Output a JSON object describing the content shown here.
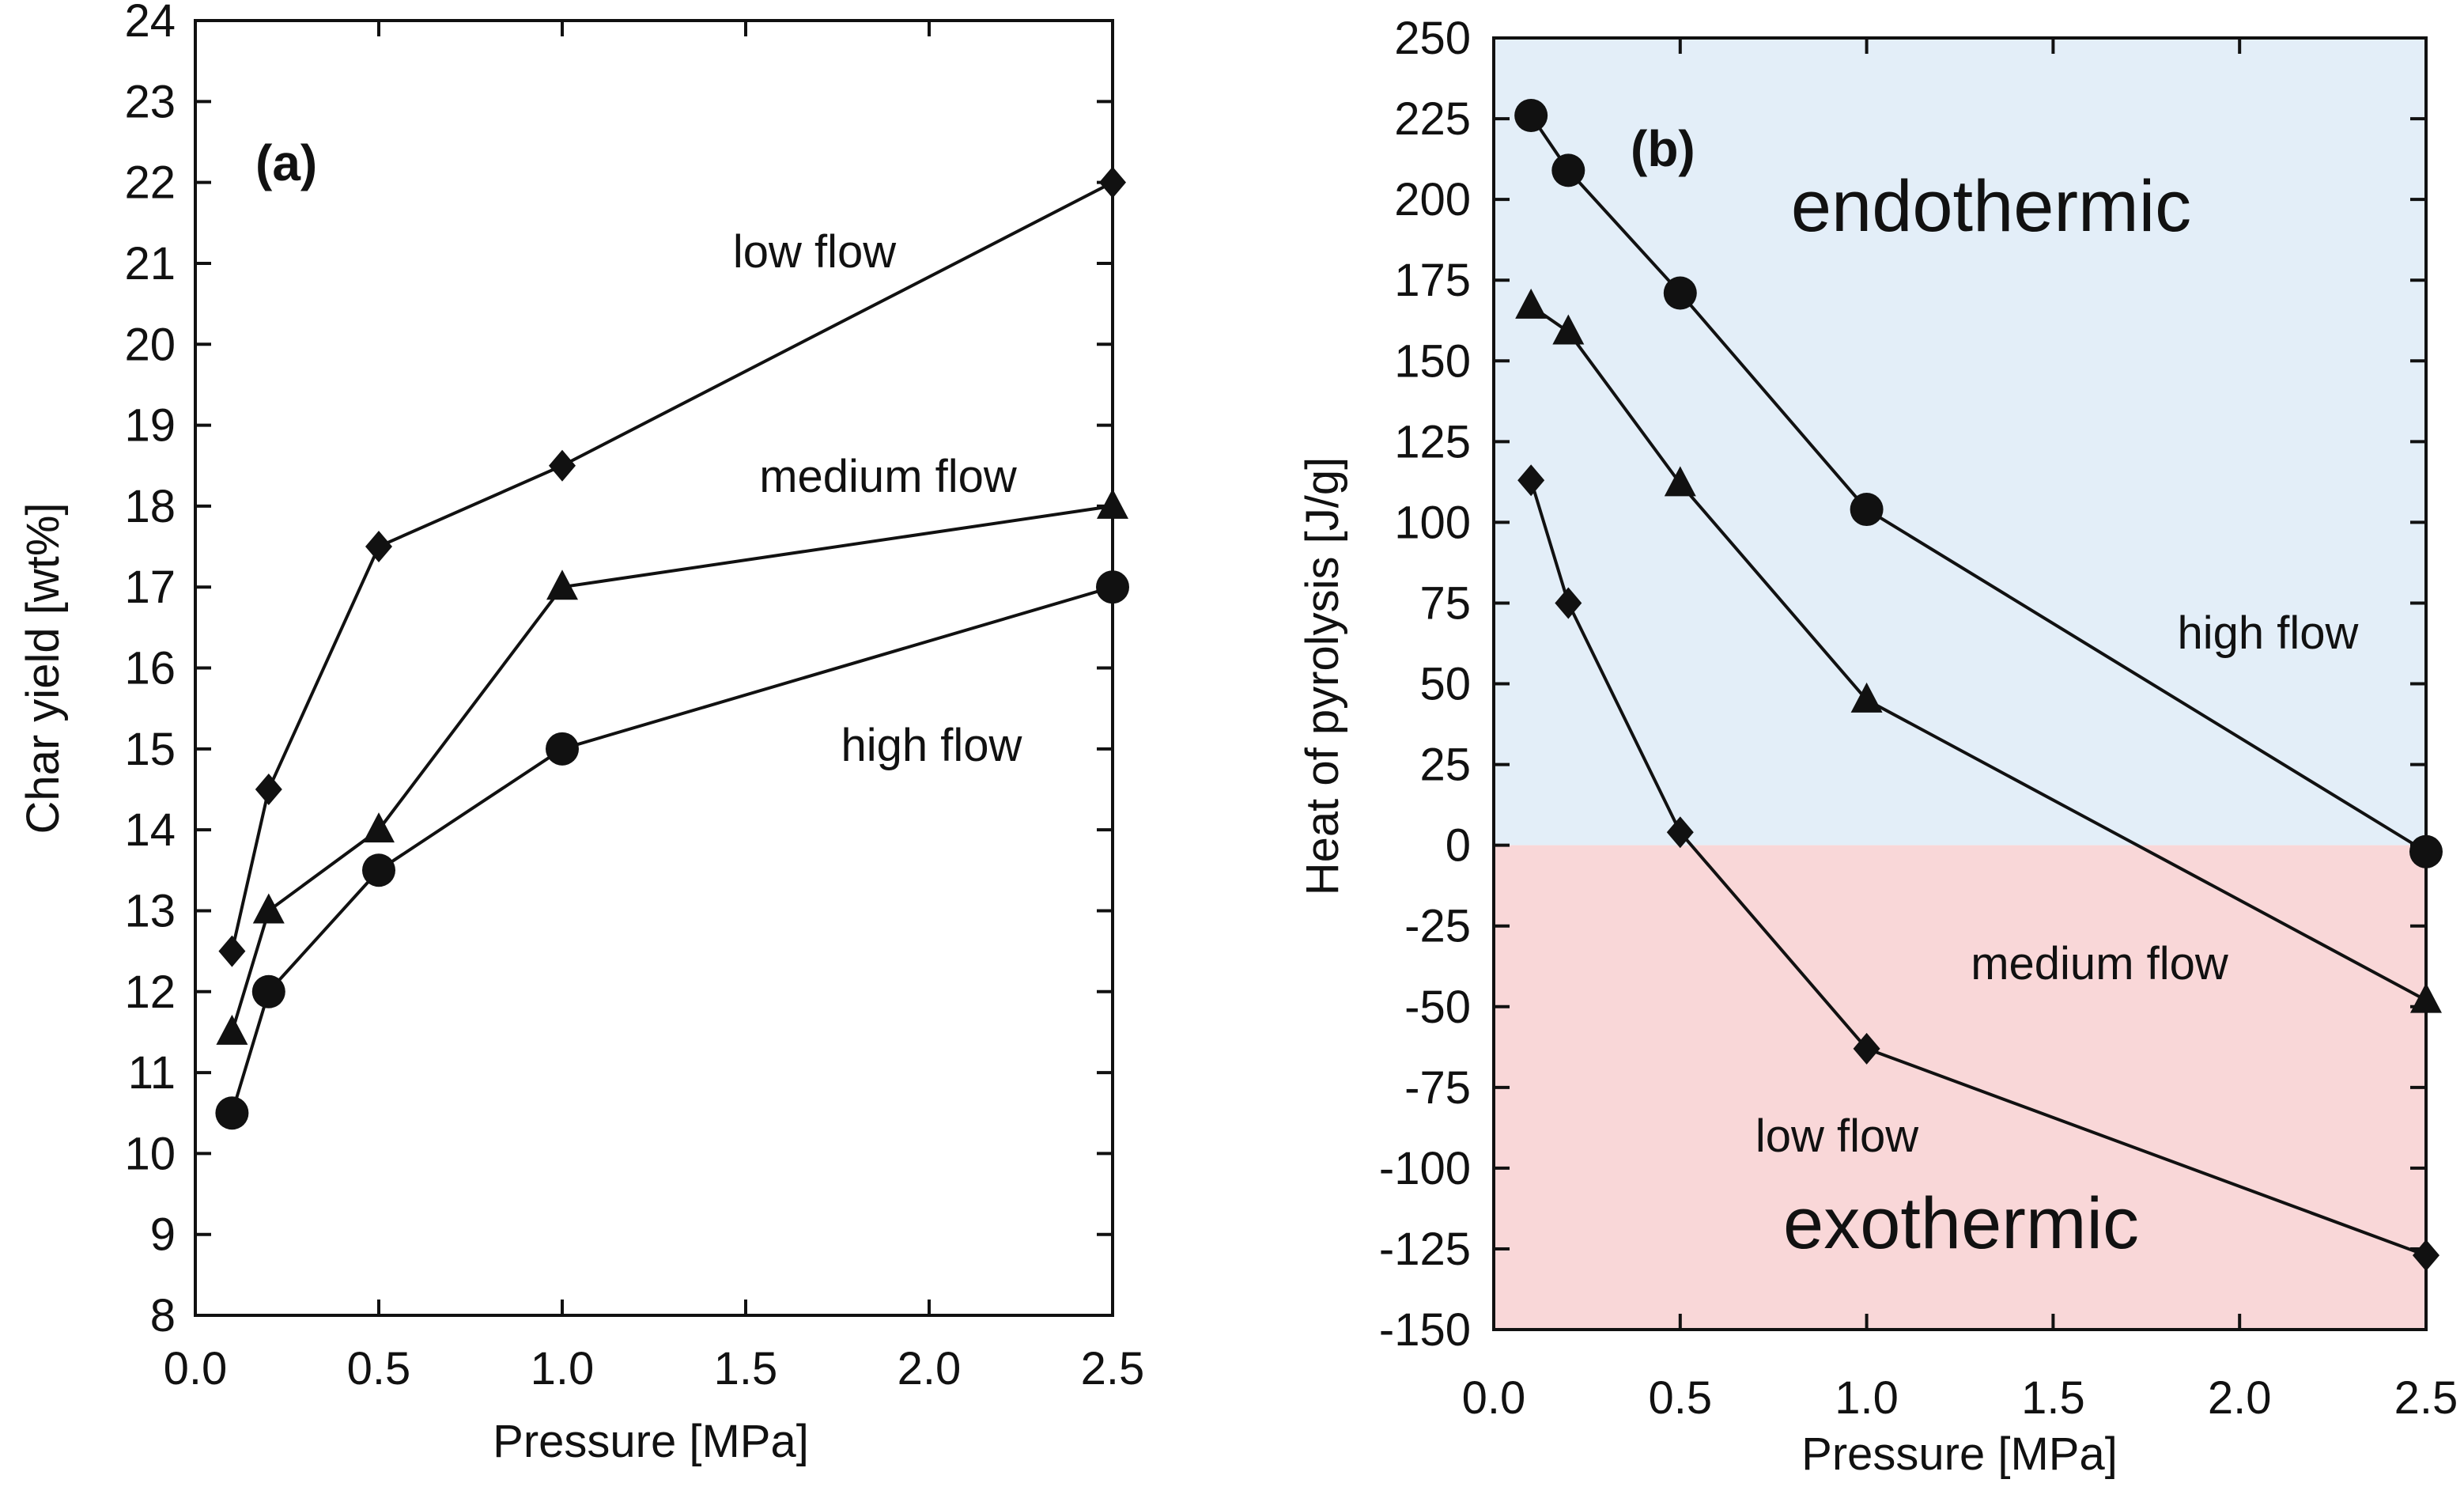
{
  "chart_data": [
    {
      "type": "line",
      "panel_label": "(a)",
      "xlabel": "Pressure [MPa]",
      "ylabel": "Char yield [wt%]",
      "x_ticks": [
        "0.0",
        "0.5",
        "1.0",
        "1.5",
        "2.0",
        "2.5"
      ],
      "y_ticks": [
        "8",
        "9",
        "10",
        "11",
        "12",
        "13",
        "14",
        "15",
        "16",
        "17",
        "18",
        "19",
        "20",
        "21",
        "22",
        "23",
        "24"
      ],
      "xlim": [
        0,
        2.5
      ],
      "ylim": [
        8,
        24
      ],
      "series": [
        {
          "name": "low flow",
          "marker": "diamond",
          "x": [
            0.1,
            0.2,
            0.5,
            1.0,
            2.5
          ],
          "y": [
            12.5,
            14.5,
            17.5,
            18.5,
            22.0
          ]
        },
        {
          "name": "medium flow",
          "marker": "triangle",
          "x": [
            0.1,
            0.2,
            0.5,
            1.0,
            2.5
          ],
          "y": [
            11.5,
            13.0,
            14.0,
            17.0,
            18.0
          ]
        },
        {
          "name": "high flow",
          "marker": "circle",
          "x": [
            0.1,
            0.2,
            0.5,
            1.0,
            2.5
          ],
          "y": [
            10.5,
            12.0,
            13.5,
            15.0,
            17.0
          ]
        }
      ],
      "annotations": [
        "low flow",
        "medium flow",
        "high flow"
      ]
    },
    {
      "type": "line",
      "panel_label": "(b)",
      "xlabel": "Pressure [MPa]",
      "ylabel": "Heat of pyrolysis [J/g]",
      "x_ticks": [
        "0.0",
        "0.5",
        "1.0",
        "1.5",
        "2.0",
        "2.5"
      ],
      "y_ticks": [
        "-150",
        "-125",
        "-100",
        "-75",
        "-50",
        "-25",
        "0",
        "25",
        "50",
        "75",
        "100",
        "125",
        "150",
        "175",
        "200",
        "225",
        "250"
      ],
      "xlim": [
        0,
        2.5
      ],
      "ylim": [
        -150,
        250
      ],
      "regions": [
        {
          "name": "endothermic",
          "range": [
            0,
            250
          ],
          "color": "#e3eef8"
        },
        {
          "name": "exothermic",
          "range": [
            -150,
            0
          ],
          "color": "#f9d7d8"
        }
      ],
      "series": [
        {
          "name": "high flow",
          "marker": "circle",
          "x": [
            0.1,
            0.2,
            0.5,
            1.0,
            2.5
          ],
          "y": [
            226,
            209,
            171,
            104,
            -2
          ]
        },
        {
          "name": "medium flow",
          "marker": "triangle",
          "x": [
            0.1,
            0.2,
            0.5,
            1.0,
            2.5
          ],
          "y": [
            167,
            159,
            112,
            45,
            -48
          ]
        },
        {
          "name": "low flow",
          "marker": "diamond",
          "x": [
            0.1,
            0.2,
            0.5,
            1.0,
            2.5
          ],
          "y": [
            113,
            75,
            4,
            -63,
            -127
          ]
        }
      ],
      "annotations": [
        "high flow",
        "medium flow",
        "low flow",
        "endothermic",
        "exothermic"
      ]
    }
  ]
}
